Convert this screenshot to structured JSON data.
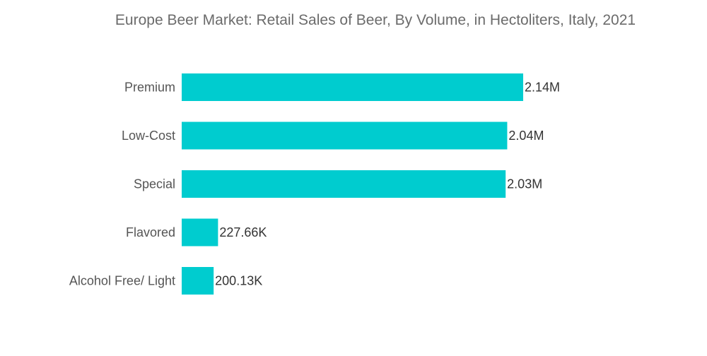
{
  "chart_data": {
    "type": "bar",
    "orientation": "horizontal",
    "title": "Europe Beer Market: Retail Sales of Beer, By Volume, in Hectoliters, Italy, 2021",
    "xlabel": "",
    "ylabel": "",
    "categories": [
      "Premium",
      "Low-Cost",
      "Special",
      "Flavored",
      "Alcohol Free/ Light"
    ],
    "values": [
      2140000,
      2040000,
      2030000,
      227660,
      200130
    ],
    "value_labels": [
      "2.14M",
      "2.04M",
      "2.03M",
      "227.66K",
      "200.13K"
    ],
    "xlim": [
      0,
      2140000
    ],
    "grid": false,
    "legend": "none",
    "bar_color": "#00cccf"
  }
}
